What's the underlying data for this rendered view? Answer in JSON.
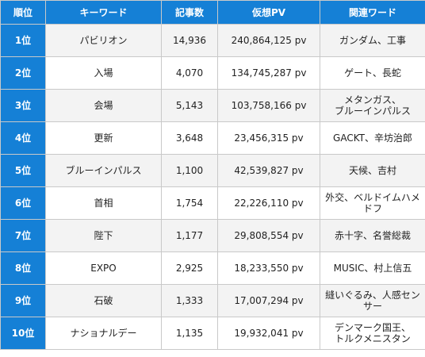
{
  "headers": {
    "rank": "順位",
    "keyword": "キーワード",
    "articles": "記事数",
    "pv": "仮想PV",
    "related": "関連ワード"
  },
  "rows": [
    {
      "rank": "1位",
      "keyword": "パビリオン",
      "articles": "14,936",
      "pv": "240,864,125 pv",
      "related": "ガンダム、工事"
    },
    {
      "rank": "2位",
      "keyword": "入場",
      "articles": "4,070",
      "pv": "134,745,287 pv",
      "related": "ゲート、長蛇"
    },
    {
      "rank": "3位",
      "keyword": "会場",
      "articles": "5,143",
      "pv": "103,758,166 pv",
      "related": "メタンガス、\nブルーインパルス"
    },
    {
      "rank": "4位",
      "keyword": "更新",
      "articles": "3,648",
      "pv": "23,456,315 pv",
      "related": "GACKT、辛坊治郎"
    },
    {
      "rank": "5位",
      "keyword": "ブルーインパルス",
      "articles": "1,100",
      "pv": "42,539,827 pv",
      "related": "天候、吉村"
    },
    {
      "rank": "6位",
      "keyword": "首相",
      "articles": "1,754",
      "pv": "22,226,110 pv",
      "related": "外交、ベルドイムハメドフ"
    },
    {
      "rank": "7位",
      "keyword": "陛下",
      "articles": "1,177",
      "pv": "29,808,554 pv",
      "related": "赤十字、名誉総裁"
    },
    {
      "rank": "8位",
      "keyword": "EXPO",
      "articles": "2,925",
      "pv": "18,233,550 pv",
      "related": "MUSIC、村上信五"
    },
    {
      "rank": "9位",
      "keyword": "石破",
      "articles": "1,333",
      "pv": "17,007,294 pv",
      "related": "縫いぐるみ、人感センサー"
    },
    {
      "rank": "10位",
      "keyword": "ナショナルデー",
      "articles": "1,135",
      "pv": "19,932,041 pv",
      "related": "デンマーク国王、\nトルクメニスタン"
    }
  ]
}
